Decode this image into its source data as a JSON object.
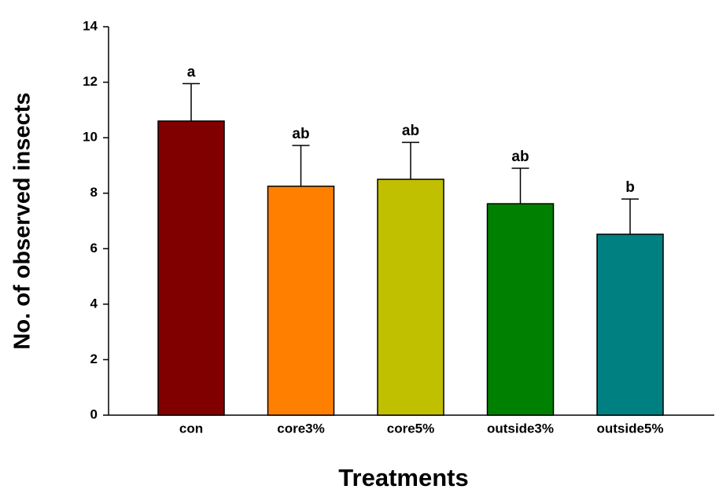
{
  "chart_data": {
    "type": "bar",
    "x_label": "Treatments",
    "y_label": "No. of observed insects",
    "categories": [
      "con",
      "core3%",
      "core5%",
      "outside3%",
      "outside5%"
    ],
    "values": [
      10.6,
      8.25,
      8.5,
      7.62,
      6.52
    ],
    "error": [
      1.35,
      1.47,
      1.33,
      1.28,
      1.27
    ],
    "annotations": [
      "a",
      "ab",
      "ab",
      "ab",
      "b"
    ],
    "colors": [
      "#800000",
      "#ff8000",
      "#c0c000",
      "#008000",
      "#008080"
    ],
    "ylim": [
      0,
      14
    ],
    "yticks": [
      0,
      2,
      4,
      6,
      8,
      10,
      12,
      14
    ],
    "grid": false
  }
}
